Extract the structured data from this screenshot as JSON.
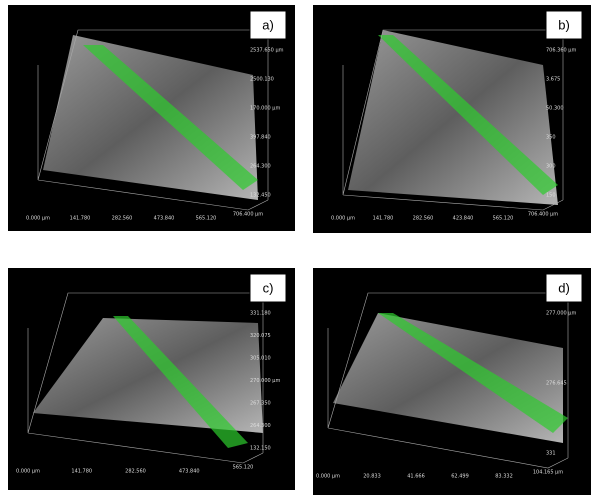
{
  "panels": [
    {
      "label": "a)",
      "x_ticks": [
        "0.000 µm",
        "141.780",
        "282.560",
        "473.840",
        "565.120",
        "706.400 µm"
      ],
      "z_ticks": [
        "2537.650 µm",
        "2500.130",
        "170.000 µm",
        "397.840",
        "264.300",
        "132.450"
      ]
    },
    {
      "label": "b)",
      "x_ticks": [
        "0.000 µm",
        "141.780",
        "282.560",
        "423.840",
        "565.120",
        "706.400 µm"
      ],
      "z_ticks": [
        "706.360 µm",
        "3.675",
        "50.300",
        "350",
        "300",
        "150"
      ]
    },
    {
      "label": "c)",
      "x_ticks": [
        "0.000 µm",
        "141.780",
        "282.560",
        "473.840",
        "565.120"
      ],
      "z_ticks": [
        "331.180",
        "320.075",
        "305.010",
        "270.000 µm",
        "267.350",
        "264.300",
        "132.150"
      ]
    },
    {
      "label": "d)",
      "x_ticks": [
        "0.000 µm",
        "20.833",
        "41.666",
        "62.499",
        "83.332",
        "104.165 µm"
      ],
      "z_ticks": [
        "277.000 µm",
        "276.645",
        "331"
      ]
    }
  ]
}
